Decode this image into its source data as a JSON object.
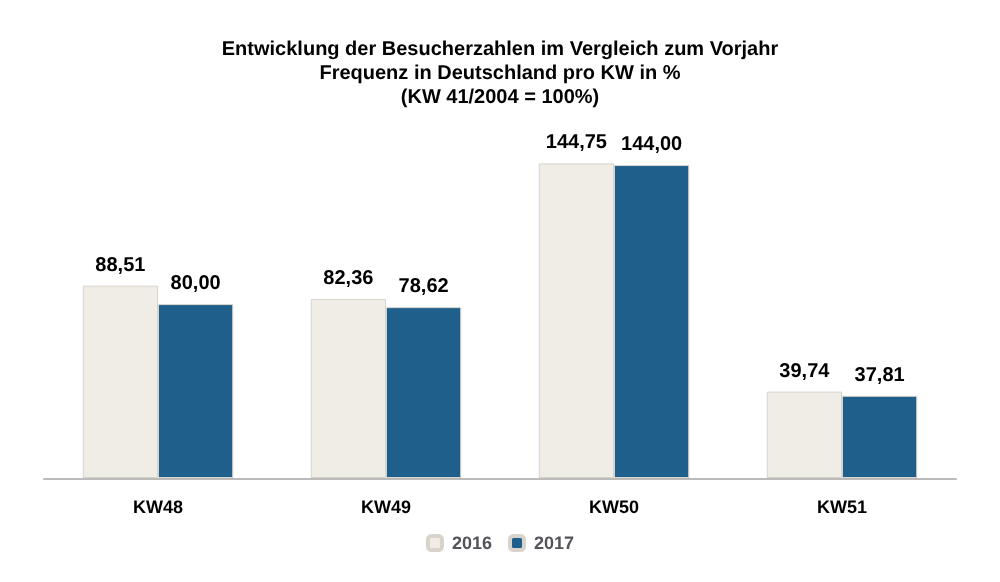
{
  "chart_data": {
    "type": "bar",
    "title": "Entwicklung der Besucherzahlen im Vergleich zum Vorjahr\nFrequenz in Deutschland pro KW in %\n(KW 41/2004 = 100%)",
    "categories": [
      "KW48",
      "KW49",
      "KW50",
      "KW51"
    ],
    "series": [
      {
        "name": "2016",
        "color": "#f0ede6",
        "values": [
          88.51,
          82.36,
          144.75,
          39.74
        ],
        "value_labels": [
          "88,51",
          "82,36",
          "144,75",
          "39,74"
        ]
      },
      {
        "name": "2017",
        "color": "#1f5f8b",
        "values": [
          80.0,
          78.62,
          144.0,
          37.81
        ],
        "value_labels": [
          "80,00",
          "78,62",
          "144,00",
          "37,81"
        ]
      }
    ],
    "legend": "bottom",
    "tick_labels": "x"
  }
}
